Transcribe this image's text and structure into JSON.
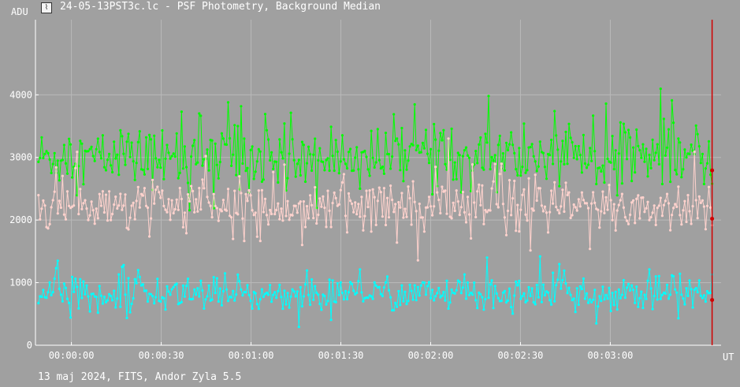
{
  "window": {
    "title": "24-05-13PST3c.lc - PSF Photometry, Background Median",
    "icon": "light-curve-icon"
  },
  "footer": {
    "text": "13 maj 2024, FITS, Andor Zyla 5.5"
  },
  "colors": {
    "background": "#a0a0a0",
    "grid": "#b9b9b9",
    "axis": "#ffffff",
    "cursor": "#d00000",
    "series": [
      "#00ff00",
      "#ffd2cd",
      "#00ffff"
    ]
  },
  "chart_data": {
    "type": "line",
    "ylabel": "ADU",
    "xlabel": "UT",
    "ylim": [
      0,
      5200
    ],
    "yticks": [
      0,
      1000,
      2000,
      3000,
      4000
    ],
    "ytick_labels": [
      "0",
      "1000",
      "2000",
      "3000",
      "4000"
    ],
    "xlim_seconds": [
      -12,
      217
    ],
    "xtick_seconds": [
      0,
      30,
      60,
      90,
      120,
      150,
      180
    ],
    "xtick_labels": [
      "00:00:00",
      "00:00:30",
      "00:01:00",
      "00:01:30",
      "00:02:00",
      "00:02:30",
      "00:03:00"
    ],
    "grid": true,
    "cursor_x_seconds": 214,
    "x_start_seconds": -11,
    "x_end_seconds": 214,
    "series": [
      {
        "mean": 3000,
        "spread": 230,
        "spike": 500
      },
      {
        "mean": 2200,
        "spread": 210,
        "spike": 450
      },
      {
        "mean": 820,
        "spread": 130,
        "spike": 280
      }
    ],
    "n_points": 420
  }
}
